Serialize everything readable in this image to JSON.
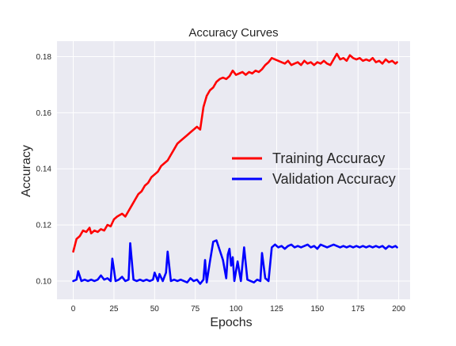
{
  "chart_data": {
    "type": "line",
    "title": "Accuracy Curves",
    "xlabel": "Epochs",
    "ylabel": "Accuracy",
    "xlim": [
      -10,
      207
    ],
    "ylim": [
      0.0935,
      0.1855
    ],
    "xticks": [
      0,
      25,
      50,
      75,
      100,
      125,
      150,
      175,
      200
    ],
    "xtick_labels": [
      "0",
      "25",
      "50",
      "75",
      "100",
      "125",
      "150",
      "175",
      "200"
    ],
    "yticks": [
      0.1,
      0.12,
      0.14,
      0.16,
      0.18
    ],
    "ytick_labels": [
      "0.10",
      "0.12",
      "0.14",
      "0.16",
      "0.18"
    ],
    "grid": true,
    "legend": "center-right",
    "series": [
      {
        "name": "Training Accuracy",
        "color": "#ff0000",
        "points": [
          [
            0,
            0.1105
          ],
          [
            2,
            0.115
          ],
          [
            4,
            0.116
          ],
          [
            6,
            0.118
          ],
          [
            8,
            0.1175
          ],
          [
            10,
            0.119
          ],
          [
            11,
            0.117
          ],
          [
            13,
            0.118
          ],
          [
            15,
            0.1175
          ],
          [
            17,
            0.1185
          ],
          [
            19,
            0.118
          ],
          [
            21,
            0.12
          ],
          [
            23,
            0.1195
          ],
          [
            25,
            0.122
          ],
          [
            27,
            0.123
          ],
          [
            30,
            0.124
          ],
          [
            32,
            0.123
          ],
          [
            34,
            0.125
          ],
          [
            36,
            0.127
          ],
          [
            38,
            0.129
          ],
          [
            40,
            0.131
          ],
          [
            42,
            0.132
          ],
          [
            44,
            0.134
          ],
          [
            46,
            0.135
          ],
          [
            48,
            0.137
          ],
          [
            50,
            0.138
          ],
          [
            52,
            0.139
          ],
          [
            54,
            0.141
          ],
          [
            56,
            0.142
          ],
          [
            58,
            0.143
          ],
          [
            60,
            0.145
          ],
          [
            62,
            0.147
          ],
          [
            64,
            0.149
          ],
          [
            66,
            0.15
          ],
          [
            68,
            0.151
          ],
          [
            70,
            0.152
          ],
          [
            72,
            0.153
          ],
          [
            74,
            0.154
          ],
          [
            76,
            0.155
          ],
          [
            78,
            0.154
          ],
          [
            79,
            0.158
          ],
          [
            80,
            0.162
          ],
          [
            81,
            0.164
          ],
          [
            82,
            0.166
          ],
          [
            84,
            0.168
          ],
          [
            86,
            0.169
          ],
          [
            88,
            0.171
          ],
          [
            90,
            0.172
          ],
          [
            92,
            0.1725
          ],
          [
            94,
            0.172
          ],
          [
            96,
            0.173
          ],
          [
            98,
            0.175
          ],
          [
            100,
            0.1735
          ],
          [
            102,
            0.174
          ],
          [
            104,
            0.1745
          ],
          [
            106,
            0.1735
          ],
          [
            108,
            0.1745
          ],
          [
            110,
            0.174
          ],
          [
            112,
            0.175
          ],
          [
            114,
            0.1745
          ],
          [
            116,
            0.1755
          ],
          [
            118,
            0.177
          ],
          [
            120,
            0.178
          ],
          [
            122,
            0.1795
          ],
          [
            124,
            0.179
          ],
          [
            126,
            0.1785
          ],
          [
            128,
            0.178
          ],
          [
            130,
            0.1775
          ],
          [
            132,
            0.1785
          ],
          [
            134,
            0.177
          ],
          [
            136,
            0.1775
          ],
          [
            138,
            0.178
          ],
          [
            140,
            0.177
          ],
          [
            142,
            0.1785
          ],
          [
            144,
            0.1775
          ],
          [
            146,
            0.178
          ],
          [
            148,
            0.177
          ],
          [
            150,
            0.178
          ],
          [
            152,
            0.1775
          ],
          [
            154,
            0.1785
          ],
          [
            156,
            0.1775
          ],
          [
            158,
            0.177
          ],
          [
            160,
            0.179
          ],
          [
            162,
            0.181
          ],
          [
            164,
            0.179
          ],
          [
            166,
            0.1795
          ],
          [
            168,
            0.1785
          ],
          [
            170,
            0.1805
          ],
          [
            172,
            0.1795
          ],
          [
            174,
            0.179
          ],
          [
            176,
            0.1795
          ],
          [
            178,
            0.1785
          ],
          [
            180,
            0.179
          ],
          [
            182,
            0.1785
          ],
          [
            184,
            0.1795
          ],
          [
            186,
            0.178
          ],
          [
            188,
            0.1785
          ],
          [
            190,
            0.1775
          ],
          [
            192,
            0.179
          ],
          [
            194,
            0.178
          ],
          [
            196,
            0.1785
          ],
          [
            198,
            0.1775
          ],
          [
            199,
            0.178
          ]
        ]
      },
      {
        "name": "Validation Accuracy",
        "color": "#0000ff",
        "points": [
          [
            0,
            0.1
          ],
          [
            2,
            0.1005
          ],
          [
            3,
            0.1035
          ],
          [
            5,
            0.1
          ],
          [
            7,
            0.1005
          ],
          [
            9,
            0.1
          ],
          [
            11,
            0.1005
          ],
          [
            13,
            0.1
          ],
          [
            15,
            0.1005
          ],
          [
            17,
            0.102
          ],
          [
            19,
            0.1005
          ],
          [
            21,
            0.101
          ],
          [
            23,
            0.1
          ],
          [
            24,
            0.108
          ],
          [
            26,
            0.1
          ],
          [
            28,
            0.1005
          ],
          [
            30,
            0.1015
          ],
          [
            32,
            0.1
          ],
          [
            34,
            0.1005
          ],
          [
            35,
            0.1135
          ],
          [
            37,
            0.1005
          ],
          [
            39,
            0.1
          ],
          [
            41,
            0.1005
          ],
          [
            43,
            0.1
          ],
          [
            45,
            0.1005
          ],
          [
            47,
            0.1
          ],
          [
            49,
            0.1005
          ],
          [
            50,
            0.103
          ],
          [
            52,
            0.1
          ],
          [
            53,
            0.1025
          ],
          [
            55,
            0.1
          ],
          [
            57,
            0.103
          ],
          [
            58,
            0.1105
          ],
          [
            60,
            0.1
          ],
          [
            62,
            0.1005
          ],
          [
            64,
            0.1
          ],
          [
            66,
            0.1005
          ],
          [
            68,
            0.1
          ],
          [
            70,
            0.0995
          ],
          [
            72,
            0.101
          ],
          [
            74,
            0.1
          ],
          [
            76,
            0.1005
          ],
          [
            78,
            0.099
          ],
          [
            80,
            0.1005
          ],
          [
            81,
            0.1075
          ],
          [
            82,
            0.0995
          ],
          [
            84,
            0.107
          ],
          [
            86,
            0.114
          ],
          [
            88,
            0.1145
          ],
          [
            90,
            0.111
          ],
          [
            92,
            0.1075
          ],
          [
            94,
            0.101
          ],
          [
            95,
            0.1095
          ],
          [
            96,
            0.1115
          ],
          [
            97,
            0.1055
          ],
          [
            98,
            0.1085
          ],
          [
            99,
            0.1
          ],
          [
            101,
            0.107
          ],
          [
            103,
            0.1
          ],
          [
            105,
            0.112
          ],
          [
            107,
            0.1005
          ],
          [
            109,
            0.1
          ],
          [
            111,
            0.0995
          ],
          [
            113,
            0.1005
          ],
          [
            115,
            0.1
          ],
          [
            116,
            0.11
          ],
          [
            118,
            0.101
          ],
          [
            120,
            0.1
          ],
          [
            122,
            0.112
          ],
          [
            124,
            0.113
          ],
          [
            126,
            0.112
          ],
          [
            128,
            0.1125
          ],
          [
            130,
            0.1115
          ],
          [
            132,
            0.1125
          ],
          [
            134,
            0.113
          ],
          [
            136,
            0.112
          ],
          [
            138,
            0.1125
          ],
          [
            140,
            0.112
          ],
          [
            142,
            0.1125
          ],
          [
            144,
            0.113
          ],
          [
            146,
            0.112
          ],
          [
            148,
            0.1125
          ],
          [
            150,
            0.1115
          ],
          [
            152,
            0.113
          ],
          [
            154,
            0.1125
          ],
          [
            156,
            0.112
          ],
          [
            158,
            0.1125
          ],
          [
            160,
            0.113
          ],
          [
            162,
            0.1125
          ],
          [
            164,
            0.112
          ],
          [
            166,
            0.1125
          ],
          [
            168,
            0.112
          ],
          [
            170,
            0.1125
          ],
          [
            172,
            0.112
          ],
          [
            174,
            0.1125
          ],
          [
            176,
            0.112
          ],
          [
            178,
            0.1125
          ],
          [
            180,
            0.112
          ],
          [
            182,
            0.1125
          ],
          [
            184,
            0.112
          ],
          [
            186,
            0.1125
          ],
          [
            188,
            0.112
          ],
          [
            190,
            0.1125
          ],
          [
            192,
            0.1115
          ],
          [
            194,
            0.1125
          ],
          [
            196,
            0.112
          ],
          [
            198,
            0.1125
          ],
          [
            199,
            0.112
          ]
        ]
      }
    ]
  }
}
